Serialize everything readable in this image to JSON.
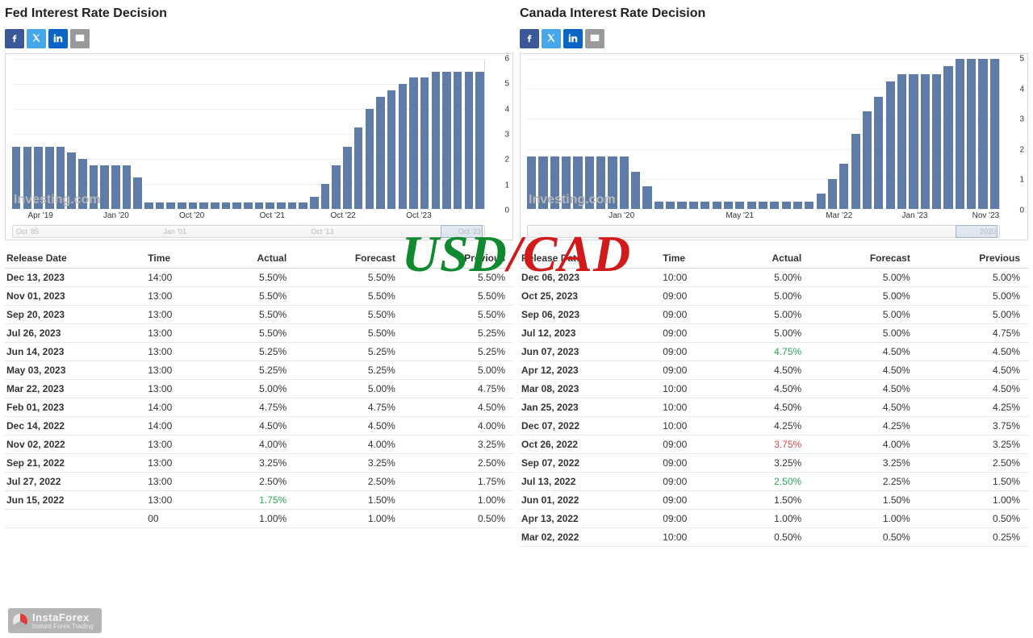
{
  "overlay": {
    "left": "USD",
    "slash": "/",
    "right": "CAD"
  },
  "watermark_text": "Investing.com",
  "instaforex": {
    "brand": "InstaForex",
    "tag": "Instant Forex Trading"
  },
  "panels": [
    {
      "key": "fed",
      "title": "Fed Interest Rate Decision",
      "share_colors": {
        "fb": "#3b5998",
        "tw": "#46a7ea",
        "in": "#0a66c2",
        "em": "#999999"
      },
      "chart": {
        "type": "bar",
        "ylim": [
          0,
          6
        ],
        "ytick_step": 1,
        "yticks": [
          0,
          1,
          2,
          3,
          4,
          5,
          6
        ],
        "background_color": "#ffffff",
        "grid_color": "#eef0f3",
        "bar_color": "#5f7ca6",
        "values": [
          2.5,
          2.5,
          2.5,
          2.5,
          2.5,
          2.25,
          2.0,
          1.75,
          1.75,
          1.75,
          1.75,
          1.25,
          0.25,
          0.25,
          0.25,
          0.25,
          0.25,
          0.25,
          0.25,
          0.25,
          0.25,
          0.25,
          0.25,
          0.25,
          0.25,
          0.25,
          0.25,
          0.5,
          1.0,
          1.75,
          2.5,
          3.25,
          4.0,
          4.5,
          4.75,
          5.0,
          5.25,
          5.25,
          5.5,
          5.5,
          5.5,
          5.5,
          5.5
        ],
        "xticks": [
          {
            "pos_pct": 6,
            "label": "Apr '19"
          },
          {
            "pos_pct": 22,
            "label": "Jan '20"
          },
          {
            "pos_pct": 38,
            "label": "Oct '20"
          },
          {
            "pos_pct": 55,
            "label": "Oct '21"
          },
          {
            "pos_pct": 70,
            "label": "Oct '22"
          },
          {
            "pos_pct": 86,
            "label": "Oct '23"
          }
        ],
        "mini_labels": [
          "Oct '85",
          "Jan '01",
          "Oct '13",
          "Oct '23"
        ]
      },
      "table": {
        "columns": [
          "Release Date",
          "Time",
          "Actual",
          "Forecast",
          "Previous"
        ],
        "rows": [
          {
            "date": "Dec 13, 2023",
            "time": "14:00",
            "actual": "5.50%",
            "forecast": "5.50%",
            "previous": "5.50%"
          },
          {
            "date": "Nov 01, 2023",
            "time": "13:00",
            "actual": "5.50%",
            "forecast": "5.50%",
            "previous": "5.50%"
          },
          {
            "date": "Sep 20, 2023",
            "time": "13:00",
            "actual": "5.50%",
            "forecast": "5.50%",
            "previous": "5.50%"
          },
          {
            "date": "Jul 26, 2023",
            "time": "13:00",
            "actual": "5.50%",
            "forecast": "5.50%",
            "previous": "5.25%"
          },
          {
            "date": "Jun 14, 2023",
            "time": "13:00",
            "actual": "5.25%",
            "forecast": "5.25%",
            "previous": "5.25%"
          },
          {
            "date": "May 03, 2023",
            "time": "13:00",
            "actual": "5.25%",
            "forecast": "5.25%",
            "previous": "5.00%"
          },
          {
            "date": "Mar 22, 2023",
            "time": "13:00",
            "actual": "5.00%",
            "forecast": "5.00%",
            "previous": "4.75%"
          },
          {
            "date": "Feb 01, 2023",
            "time": "14:00",
            "actual": "4.75%",
            "forecast": "4.75%",
            "previous": "4.50%"
          },
          {
            "date": "Dec 14, 2022",
            "time": "14:00",
            "actual": "4.50%",
            "forecast": "4.50%",
            "previous": "4.00%"
          },
          {
            "date": "Nov 02, 2022",
            "time": "13:00",
            "actual": "4.00%",
            "forecast": "4.00%",
            "previous": "3.25%"
          },
          {
            "date": "Sep 21, 2022",
            "time": "13:00",
            "actual": "3.25%",
            "forecast": "3.25%",
            "previous": "2.50%"
          },
          {
            "date": "Jul 27, 2022",
            "time": "13:00",
            "actual": "2.50%",
            "forecast": "2.50%",
            "previous": "1.75%"
          },
          {
            "date": "Jun 15, 2022",
            "time": "13:00",
            "actual": "1.75%",
            "actual_class": "pos",
            "forecast": "1.50%",
            "previous": "1.00%"
          },
          {
            "date": "",
            "time": "00",
            "actual": "1.00%",
            "forecast": "1.00%",
            "previous": "0.50%"
          }
        ]
      }
    },
    {
      "key": "canada",
      "title": "Canada Interest Rate Decision",
      "share_colors": {
        "fb": "#3b5998",
        "tw": "#46a7ea",
        "in": "#0a66c2",
        "em": "#999999"
      },
      "chart": {
        "type": "bar",
        "ylim": [
          0,
          5
        ],
        "ytick_step": 1,
        "yticks": [
          0,
          1,
          2,
          3,
          4,
          5
        ],
        "background_color": "#ffffff",
        "grid_color": "#eef0f3",
        "bar_color": "#5f7ca6",
        "values": [
          1.75,
          1.75,
          1.75,
          1.75,
          1.75,
          1.75,
          1.75,
          1.75,
          1.75,
          1.25,
          0.75,
          0.25,
          0.25,
          0.25,
          0.25,
          0.25,
          0.25,
          0.25,
          0.25,
          0.25,
          0.25,
          0.25,
          0.25,
          0.25,
          0.25,
          0.5,
          1.0,
          1.5,
          2.5,
          3.25,
          3.75,
          4.25,
          4.5,
          4.5,
          4.5,
          4.5,
          4.75,
          5.0,
          5.0,
          5.0,
          5.0
        ],
        "xticks": [
          {
            "pos_pct": 20,
            "label": "Jan '20"
          },
          {
            "pos_pct": 45,
            "label": "May '21"
          },
          {
            "pos_pct": 66,
            "label": "Mar '22"
          },
          {
            "pos_pct": 82,
            "label": "Jan '23"
          },
          {
            "pos_pct": 97,
            "label": "Nov '23"
          }
        ],
        "mini_labels": [
          "",
          "",
          "",
          "2020"
        ]
      },
      "table": {
        "columns": [
          "Release Date",
          "Time",
          "Actual",
          "Forecast",
          "Previous"
        ],
        "rows": [
          {
            "date": "Dec 06, 2023",
            "time": "10:00",
            "actual": "5.00%",
            "forecast": "5.00%",
            "previous": "5.00%"
          },
          {
            "date": "Oct 25, 2023",
            "time": "09:00",
            "actual": "5.00%",
            "forecast": "5.00%",
            "previous": "5.00%"
          },
          {
            "date": "Sep 06, 2023",
            "time": "09:00",
            "actual": "5.00%",
            "forecast": "5.00%",
            "previous": "5.00%"
          },
          {
            "date": "Jul 12, 2023",
            "time": "09:00",
            "actual": "5.00%",
            "forecast": "5.00%",
            "previous": "4.75%"
          },
          {
            "date": "Jun 07, 2023",
            "time": "09:00",
            "actual": "4.75%",
            "actual_class": "pos",
            "forecast": "4.50%",
            "previous": "4.50%"
          },
          {
            "date": "Apr 12, 2023",
            "time": "09:00",
            "actual": "4.50%",
            "forecast": "4.50%",
            "previous": "4.50%"
          },
          {
            "date": "Mar 08, 2023",
            "time": "10:00",
            "actual": "4.50%",
            "forecast": "4.50%",
            "previous": "4.50%"
          },
          {
            "date": "Jan 25, 2023",
            "time": "10:00",
            "actual": "4.50%",
            "forecast": "4.50%",
            "previous": "4.25%"
          },
          {
            "date": "Dec 07, 2022",
            "time": "10:00",
            "actual": "4.25%",
            "forecast": "4.25%",
            "previous": "3.75%"
          },
          {
            "date": "Oct 26, 2022",
            "time": "09:00",
            "actual": "3.75%",
            "actual_class": "neg",
            "forecast": "4.00%",
            "previous": "3.25%"
          },
          {
            "date": "Sep 07, 2022",
            "time": "09:00",
            "actual": "3.25%",
            "forecast": "3.25%",
            "previous": "2.50%"
          },
          {
            "date": "Jul 13, 2022",
            "time": "09:00",
            "actual": "2.50%",
            "actual_class": "pos",
            "forecast": "2.25%",
            "previous": "1.50%"
          },
          {
            "date": "Jun 01, 2022",
            "time": "09:00",
            "actual": "1.50%",
            "forecast": "1.50%",
            "previous": "1.00%"
          },
          {
            "date": "Apr 13, 2022",
            "time": "09:00",
            "actual": "1.00%",
            "forecast": "1.00%",
            "previous": "0.50%"
          },
          {
            "date": "Mar 02, 2022",
            "time": "10:00",
            "actual": "0.50%",
            "forecast": "0.50%",
            "previous": "0.25%"
          }
        ]
      }
    }
  ]
}
